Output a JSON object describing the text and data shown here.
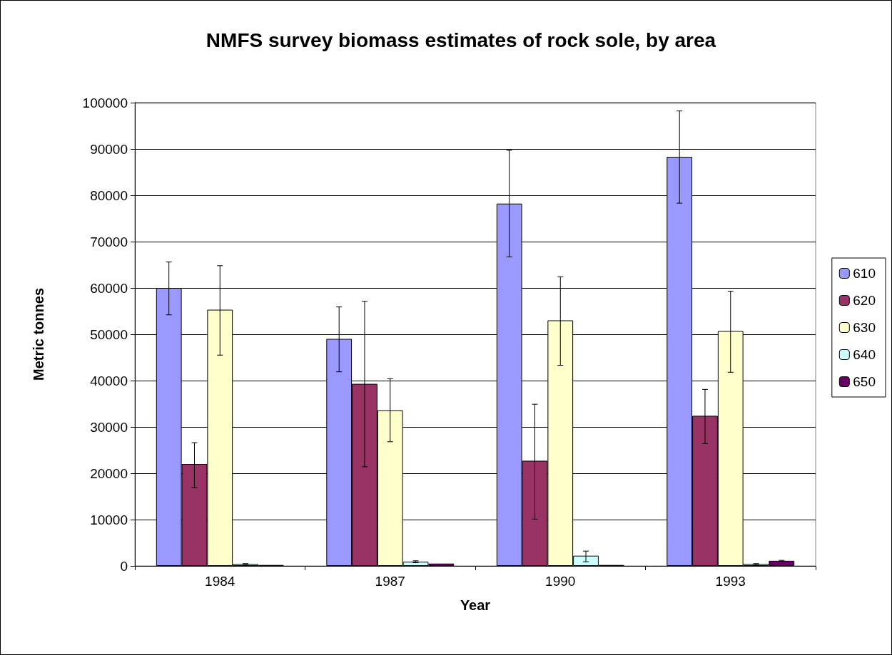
{
  "chart_data": {
    "type": "bar",
    "title": "NMFS survey biomass estimates of rock sole, by area",
    "xlabel": "Year",
    "ylabel": "Metric tonnes",
    "categories": [
      "1984",
      "1987",
      "1990",
      "1993"
    ],
    "series": [
      {
        "name": "610",
        "color": "#9999ff",
        "values": [
          60000,
          49000,
          78200,
          88300
        ],
        "errors": [
          [
            54200,
            65600
          ],
          [
            41900,
            55900
          ],
          [
            66700,
            89700
          ],
          [
            78300,
            98200
          ]
        ]
      },
      {
        "name": "620",
        "color": "#993366",
        "values": [
          22000,
          39300,
          22700,
          32400
        ],
        "errors": [
          [
            16900,
            26600
          ],
          [
            21400,
            57100
          ],
          [
            10100,
            34900
          ],
          [
            26400,
            38100
          ]
        ]
      },
      {
        "name": "630",
        "color": "#ffffcc",
        "values": [
          55300,
          33600,
          53000,
          50700
        ],
        "errors": [
          [
            45500,
            64800
          ],
          [
            26800,
            40400
          ],
          [
            43300,
            62400
          ],
          [
            41800,
            59300
          ]
        ]
      },
      {
        "name": "640",
        "color": "#ccffff",
        "values": [
          400,
          900,
          2200,
          400
        ],
        "errors": [
          [
            300,
            500
          ],
          [
            700,
            1100
          ],
          [
            900,
            3200
          ],
          [
            300,
            500
          ]
        ]
      },
      {
        "name": "650",
        "color": "#660066",
        "values": [
          200,
          500,
          200,
          1100
        ],
        "errors": [
          null,
          null,
          null,
          [
            1000,
            1200
          ]
        ]
      }
    ],
    "ylim": [
      0,
      100000
    ],
    "yticks": [
      0,
      10000,
      20000,
      30000,
      40000,
      50000,
      60000,
      70000,
      80000,
      90000,
      100000
    ],
    "grid": "y",
    "legend": "right"
  }
}
